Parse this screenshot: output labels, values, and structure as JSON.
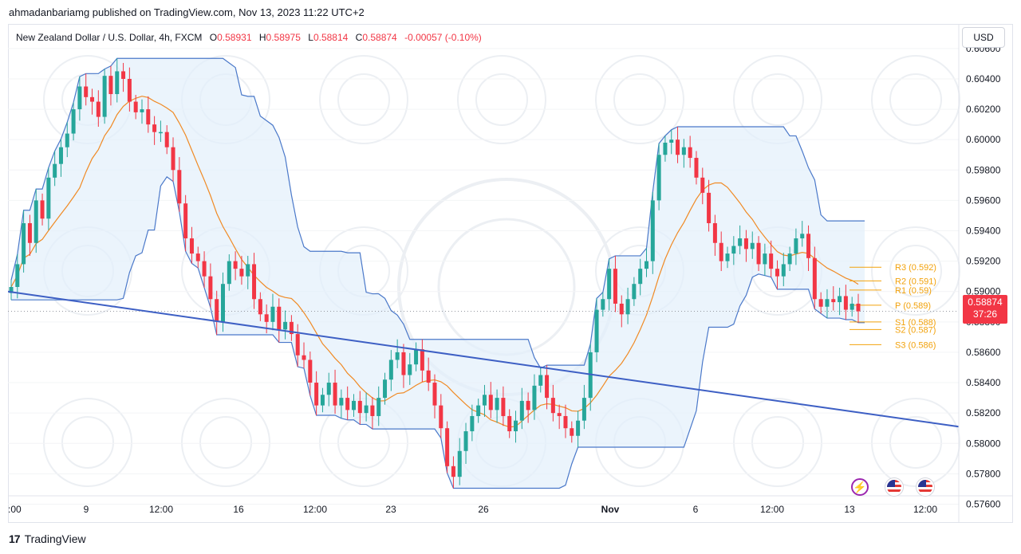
{
  "publisher": "ahmadanbariamg published on TradingView.com, Nov 13, 2023 11:22 UTC+2",
  "legend": {
    "symbol": "New Zealand Dollar / U.S. Dollar, 4h, FXCM",
    "open_label": "O",
    "open": "0.58931",
    "high_label": "H",
    "high": "0.58975",
    "low_label": "L",
    "low": "0.58814",
    "close_label": "C",
    "close": "0.58874",
    "change": "-0.00057 (-0.10%)"
  },
  "currency_button": "USD",
  "price_tag": {
    "price": "0.58874",
    "countdown": "37:26"
  },
  "footer": {
    "logo": "17",
    "brand": "TradingView"
  },
  "events": [
    "lightning-icon",
    "us-flag-icon",
    "us-flag-icon"
  ],
  "colors": {
    "up": "#26a69a",
    "down": "#f23645",
    "channel": "#4a78c9",
    "channel_fill": "#e3f0fb",
    "basis": "#f08a24",
    "trendline": "#3d5fc4",
    "pivot": "#f2a20c"
  },
  "chart_data": {
    "type": "candlestick",
    "symbol": "NZDUSD",
    "timeframe": "4h",
    "y_axis": {
      "range": [
        0.5755,
        0.6072
      ],
      "ticks": [
        "0.60600",
        "0.60400",
        "0.60200",
        "0.60000",
        "0.59800",
        "0.59600",
        "0.59400",
        "0.59200",
        "0.59000",
        "0.58800",
        "0.58600",
        "0.58400",
        "0.58200",
        "0.58000",
        "0.57800",
        "0.57600"
      ]
    },
    "x_axis": {
      "ticks": [
        ":00",
        "9",
        "12:00",
        "16",
        "12:00",
        "23",
        "26",
        "Nov",
        "6",
        "12:00",
        "13",
        "12:00"
      ],
      "bold_ticks": [
        "Nov"
      ]
    },
    "pivot_levels": [
      {
        "label": "R3 (0.592)",
        "value": 0.5916
      },
      {
        "label": "R2 (0.591)",
        "value": 0.5907
      },
      {
        "label": "R1 (0.59)",
        "value": 0.5901
      },
      {
        "label": "P (0.589)",
        "value": 0.5891
      },
      {
        "label": "S1 (0.588)",
        "value": 0.588
      },
      {
        "label": "S2 (0.587)",
        "value": 0.5875
      },
      {
        "label": "S3 (0.586)",
        "value": 0.5865
      }
    ],
    "trendline": [
      [
        0,
        0.59
      ],
      [
        1,
        0.5811
      ]
    ],
    "close_series": [
      0.5903,
      0.5918,
      0.5945,
      0.5932,
      0.596,
      0.5948,
      0.5975,
      0.5984,
      0.5995,
      0.6004,
      0.602,
      0.6035,
      0.6028,
      0.6025,
      0.6015,
      0.6042,
      0.603,
      0.6045,
      0.604,
      0.6025,
      0.6018,
      0.602,
      0.601,
      0.6005,
      0.6005,
      0.5995,
      0.598,
      0.5958,
      0.5935,
      0.5925,
      0.592,
      0.591,
      0.5895,
      0.588,
      0.5905,
      0.592,
      0.5915,
      0.591,
      0.5918,
      0.5895,
      0.5885,
      0.588,
      0.589,
      0.5875,
      0.588,
      0.5872,
      0.5858,
      0.5855,
      0.584,
      0.5825,
      0.5832,
      0.584,
      0.5825,
      0.583,
      0.5822,
      0.5828,
      0.582,
      0.5825,
      0.5818,
      0.583,
      0.5842,
      0.5855,
      0.586,
      0.5845,
      0.5852,
      0.5862,
      0.5848,
      0.584,
      0.5825,
      0.581,
      0.5785,
      0.5778,
      0.5795,
      0.5808,
      0.5818,
      0.5825,
      0.5832,
      0.5822,
      0.583,
      0.5818,
      0.5808,
      0.5815,
      0.5828,
      0.5822,
      0.5838,
      0.5845,
      0.583,
      0.582,
      0.5818,
      0.581,
      0.5805,
      0.5815,
      0.583,
      0.586,
      0.5888,
      0.5895,
      0.5915,
      0.5892,
      0.5885,
      0.5895,
      0.5905,
      0.5915,
      0.592,
      0.596,
      0.599,
      0.5998,
      0.6,
      0.599,
      0.5995,
      0.5988,
      0.5975,
      0.5965,
      0.5945,
      0.5932,
      0.592,
      0.5925,
      0.593,
      0.5935,
      0.5928,
      0.5932,
      0.5918,
      0.5925,
      0.5915,
      0.591,
      0.5918,
      0.5925,
      0.5935,
      0.5938,
      0.5922,
      0.5895,
      0.589,
      0.5895,
      0.5893,
      0.5897,
      0.5888,
      0.5892,
      0.5887
    ]
  }
}
